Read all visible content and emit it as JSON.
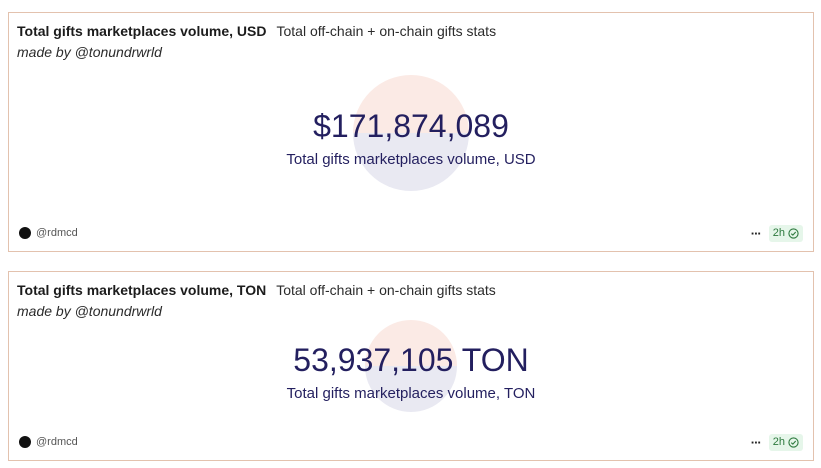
{
  "cards": [
    {
      "title": "Total gifts marketplaces volume, USD",
      "subtitle": "Total off-chain + on-chain gifts stats",
      "author": "made by @tonundrwrld",
      "value": "$171,874,089",
      "value_label": "Total gifts marketplaces volume, USD",
      "owner": "@rdmcd",
      "more_label": "···",
      "refresh_age": "2h",
      "status_icon": "check-circle-icon"
    },
    {
      "title": "Total gifts marketplaces volume, TON",
      "subtitle": "Total off-chain + on-chain gifts stats",
      "author": "made by @tonundrwrld",
      "value": "53,937,105 TON",
      "value_label": "Total gifts marketplaces volume, TON",
      "owner": "@rdmcd",
      "more_label": "···",
      "refresh_age": "2h",
      "status_icon": "check-circle-icon"
    }
  ],
  "colors": {
    "card_border": "#e3c2ae",
    "value_text": "#231f5f",
    "circle_top": "#fbeae5",
    "circle_bottom": "#e9e9f2",
    "badge_bg": "#e6f6ea",
    "badge_text": "#2d7a3e"
  }
}
